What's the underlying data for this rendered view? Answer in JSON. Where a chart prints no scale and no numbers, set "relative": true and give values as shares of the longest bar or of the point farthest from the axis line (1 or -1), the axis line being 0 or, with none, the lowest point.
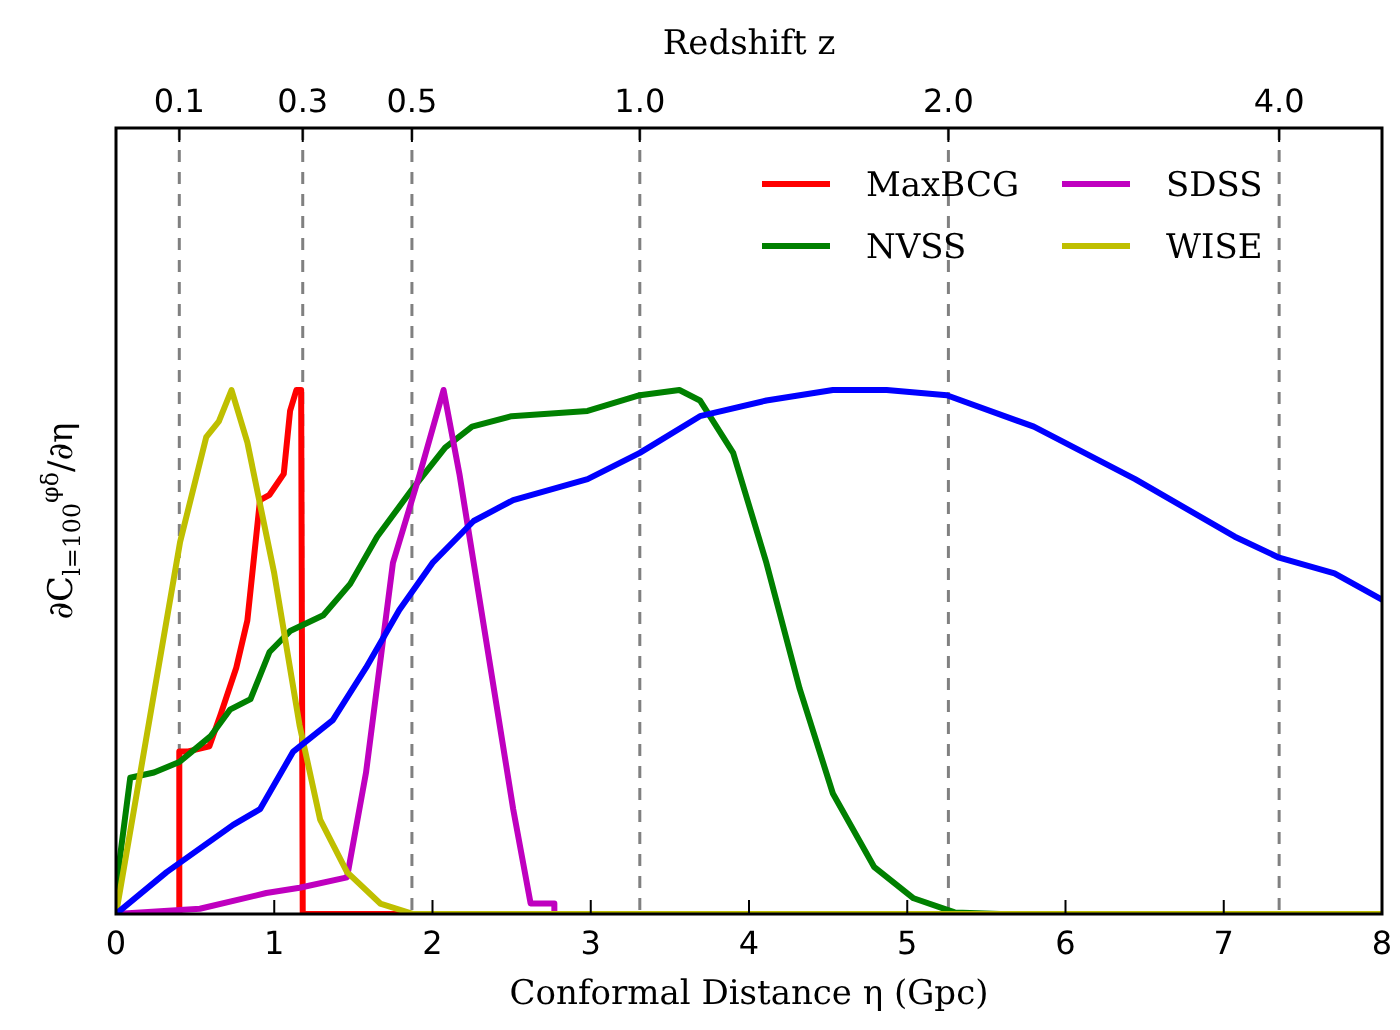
{
  "chart_data": {
    "type": "line",
    "relative": true,
    "xlabel": "Conformal Distance η (Gpc)",
    "ylabel": "∂C$_{l=100}$$^{φδ}$/∂η",
    "x2label": "Redshift z",
    "xlim": [
      0,
      8
    ],
    "xticks": [
      0,
      1,
      2,
      3,
      4,
      5,
      6,
      7,
      8
    ],
    "annotations": [
      {
        "text": "0.1",
        "x": 0.4
      },
      {
        "text": "0.3",
        "x": 1.18
      },
      {
        "text": "0.5",
        "x": 1.87
      },
      {
        "text": "1.0",
        "x": 3.31
      },
      {
        "text": "2.0",
        "x": 5.26
      },
      {
        "text": "4.0",
        "x": 7.35
      }
    ],
    "ref_lines": [
      {
        "axis": "x",
        "value": 0.4,
        "color": "#808080",
        "line_style": "dashed"
      },
      {
        "axis": "x",
        "value": 1.18,
        "color": "#808080",
        "line_style": "dashed"
      },
      {
        "axis": "x",
        "value": 1.87,
        "color": "#808080",
        "line_style": "dashed"
      },
      {
        "axis": "x",
        "value": 3.31,
        "color": "#808080",
        "line_style": "dashed"
      },
      {
        "axis": "x",
        "value": 5.26,
        "color": "#808080",
        "line_style": "dashed"
      },
      {
        "axis": "x",
        "value": 7.35,
        "color": "#808080",
        "line_style": "dashed"
      }
    ],
    "legend": "top right",
    "grid": false,
    "series": [
      {
        "name": "MaxBCG",
        "color": "#ff0000",
        "x": [
          0,
          0.4,
          0.4,
          0.45,
          0.59,
          0.66,
          0.76,
          0.83,
          0.91,
          0.97,
          1.06,
          1.1,
          1.14,
          1.17,
          1.18,
          8
        ],
        "values": [
          0,
          0,
          0.31,
          0.31,
          0.32,
          0.38,
          0.47,
          0.56,
          0.79,
          0.8,
          0.84,
          0.96,
          1,
          1,
          0,
          0
        ]
      },
      {
        "name": "NVSS",
        "color": "#008000",
        "x": [
          0,
          0.09,
          0.24,
          0.4,
          0.6,
          0.72,
          0.85,
          0.97,
          1.1,
          1.31,
          1.48,
          1.65,
          1.87,
          2.08,
          2.25,
          2.5,
          2.98,
          3.31,
          3.56,
          3.69,
          3.9,
          4.11,
          4.32,
          4.53,
          4.79,
          5.04,
          5.3,
          5.59,
          8
        ],
        "values": [
          0.05,
          0.26,
          0.27,
          0.29,
          0.34,
          0.39,
          0.41,
          0.5,
          0.54,
          0.57,
          0.63,
          0.72,
          0.81,
          0.89,
          0.93,
          0.95,
          0.96,
          0.99,
          1,
          0.98,
          0.88,
          0.67,
          0.43,
          0.23,
          0.09,
          0.03,
          0.003,
          0,
          0
        ]
      },
      {
        "name": "SDSS",
        "color": "#bf00bf",
        "x": [
          0,
          0.53,
          0.95,
          1.16,
          1.46,
          1.58,
          1.75,
          1.92,
          2.07,
          2.17,
          2.34,
          2.51,
          2.62,
          2.77,
          2.77
        ],
        "values": [
          0,
          0.01,
          0.04,
          0.05,
          0.07,
          0.27,
          0.67,
          0.84,
          1,
          0.84,
          0.52,
          0.2,
          0.02,
          0.02,
          0
        ]
      },
      {
        "name": "WISE",
        "color": "#bfbf00",
        "x": [
          0,
          0.405,
          0.57,
          0.65,
          0.73,
          0.83,
          1.0,
          1.16,
          1.29,
          1.46,
          1.67,
          1.88,
          8
        ],
        "values": [
          0,
          0.71,
          0.91,
          0.94,
          1,
          0.9,
          0.65,
          0.36,
          0.18,
          0.08,
          0.02,
          0,
          0
        ]
      },
      {
        "color": "#0000ff",
        "x": [
          0,
          0.32,
          0.74,
          0.91,
          1.12,
          1.37,
          1.58,
          1.79,
          2.0,
          2.26,
          2.51,
          2.98,
          3.31,
          3.69,
          4.11,
          4.53,
          4.87,
          5.25,
          5.8,
          6.44,
          7.07,
          7.35,
          7.7,
          8
        ],
        "values": [
          0,
          0.08,
          0.17,
          0.2,
          0.31,
          0.37,
          0.47,
          0.58,
          0.67,
          0.75,
          0.79,
          0.83,
          0.88,
          0.95,
          0.98,
          1,
          1,
          0.99,
          0.93,
          0.83,
          0.72,
          0.68,
          0.65,
          0.6
        ]
      }
    ]
  }
}
